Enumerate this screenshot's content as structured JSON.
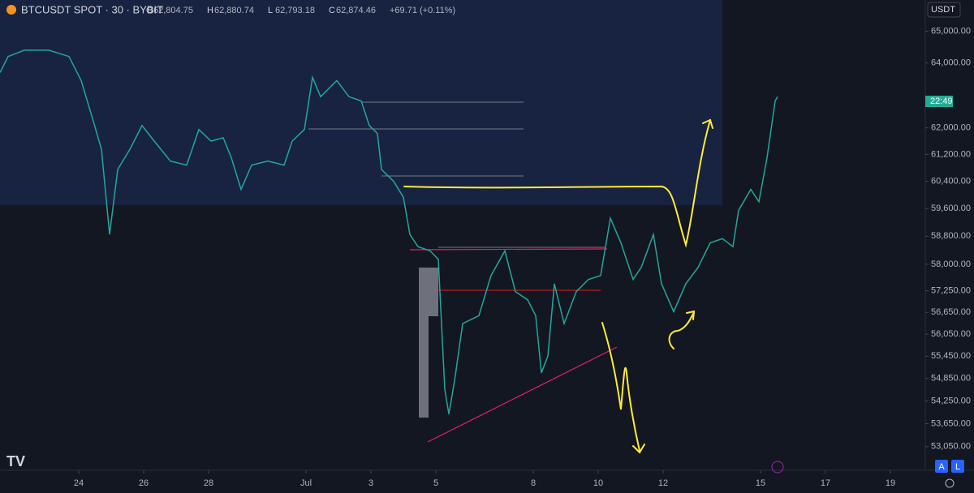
{
  "chart_data": {
    "type": "line",
    "title": "BTCUSDT SPOT · 30 · BYBIT",
    "ohlc": [
      {
        "label": "O",
        "value": "62,804.75"
      },
      {
        "label": "H",
        "value": "62,880.74"
      },
      {
        "label": "L",
        "value": "62,793.18"
      },
      {
        "label": "C",
        "value": "62,874.46"
      }
    ],
    "change": "+69.71 (+0.11%)",
    "currency": "USDT",
    "countdown": "22:49",
    "buttons": [
      "A",
      "L"
    ],
    "color": "#26a69a",
    "log_scale": true,
    "x": [
      21.575,
      21.825,
      22.325,
      23.075,
      23.7,
      24.075,
      24.45,
      24.7,
      24.95,
      25.2,
      25.575,
      25.95,
      26.325,
      26.825,
      27.325,
      27.7,
      28.075,
      28.45,
      28.7,
      29.0,
      29.325,
      29.825,
      30.325,
      30.575,
      30.95,
      31.2,
      31.45,
      31.95,
      32.325,
      32.7,
      32.95,
      33.2,
      33.325,
      33.7,
      34.0,
      34.2,
      34.45,
      34.825,
      35.075,
      35.275,
      35.4,
      35.575,
      35.825,
      36.325,
      36.7,
      37.125,
      37.45,
      37.825,
      38.075,
      38.25,
      38.45,
      38.65,
      38.95,
      39.325,
      39.7,
      40.075,
      40.375,
      40.7,
      41.075,
      41.325,
      41.7,
      41.95,
      42.325,
      42.7,
      43.075,
      43.45,
      43.825,
      44.15,
      44.325,
      44.7,
      44.95,
      45.2,
      45.45,
      45.525
    ],
    "values": [
      63700,
      64200,
      64400,
      64400,
      64200,
      63450,
      62200,
      61350,
      58850,
      60750,
      61350,
      62070,
      61600,
      61000,
      60880,
      61950,
      61600,
      61700,
      61100,
      60160,
      60880,
      61000,
      60880,
      61600,
      61950,
      63550,
      62950,
      63450,
      62950,
      62820,
      62070,
      61830,
      60750,
      60400,
      59930,
      58850,
      58500,
      58380,
      58140,
      54560,
      53900,
      54780,
      56340,
      56560,
      57680,
      58380,
      57230,
      57000,
      56560,
      55000,
      55450,
      57450,
      56340,
      57230,
      57570,
      57680,
      59320,
      58610,
      57570,
      57910,
      58850,
      57450,
      56670,
      57450,
      57910,
      58610,
      58730,
      58500,
      59550,
      60160,
      59800,
      61100,
      62820,
      62950
    ],
    "xlim": [
      21.575,
      50.075
    ],
    "xticks": [
      {
        "value": 24,
        "label": "24"
      },
      {
        "value": 26,
        "label": "26"
      },
      {
        "value": 28,
        "label": "28"
      },
      {
        "value": 31,
        "label": "Jul"
      },
      {
        "value": 33,
        "label": "3"
      },
      {
        "value": 35,
        "label": "5"
      },
      {
        "value": 38,
        "label": "8"
      },
      {
        "value": 40,
        "label": "10"
      },
      {
        "value": 42,
        "label": "12"
      },
      {
        "value": 45,
        "label": "15"
      },
      {
        "value": 47,
        "label": "17"
      },
      {
        "value": 49,
        "label": "19"
      }
    ],
    "ylim": [
      52440,
      66000
    ],
    "yticks": [
      {
        "value": 65000,
        "label": "65,000.00"
      },
      {
        "value": 64000,
        "label": "64,000.00"
      },
      {
        "value": 62000,
        "label": "62,000.00"
      },
      {
        "value": 61200,
        "label": "61,200.00"
      },
      {
        "value": 60400,
        "label": "60,400.00"
      },
      {
        "value": 59600,
        "label": "59,600.00"
      },
      {
        "value": 58800,
        "label": "58,800.00"
      },
      {
        "value": 58000,
        "label": "58,000.00"
      },
      {
        "value": 57250,
        "label": "57,250.00"
      },
      {
        "value": 56650,
        "label": "56,650.00"
      },
      {
        "value": 56050,
        "label": "56,050.00"
      },
      {
        "value": 55450,
        "label": "55,450.00"
      },
      {
        "value": 54850,
        "label": "54,850.00"
      },
      {
        "value": 54250,
        "label": "54,250.00"
      },
      {
        "value": 53650,
        "label": "53,650.00"
      },
      {
        "value": 53050,
        "label": "53,050.00"
      }
    ]
  }
}
